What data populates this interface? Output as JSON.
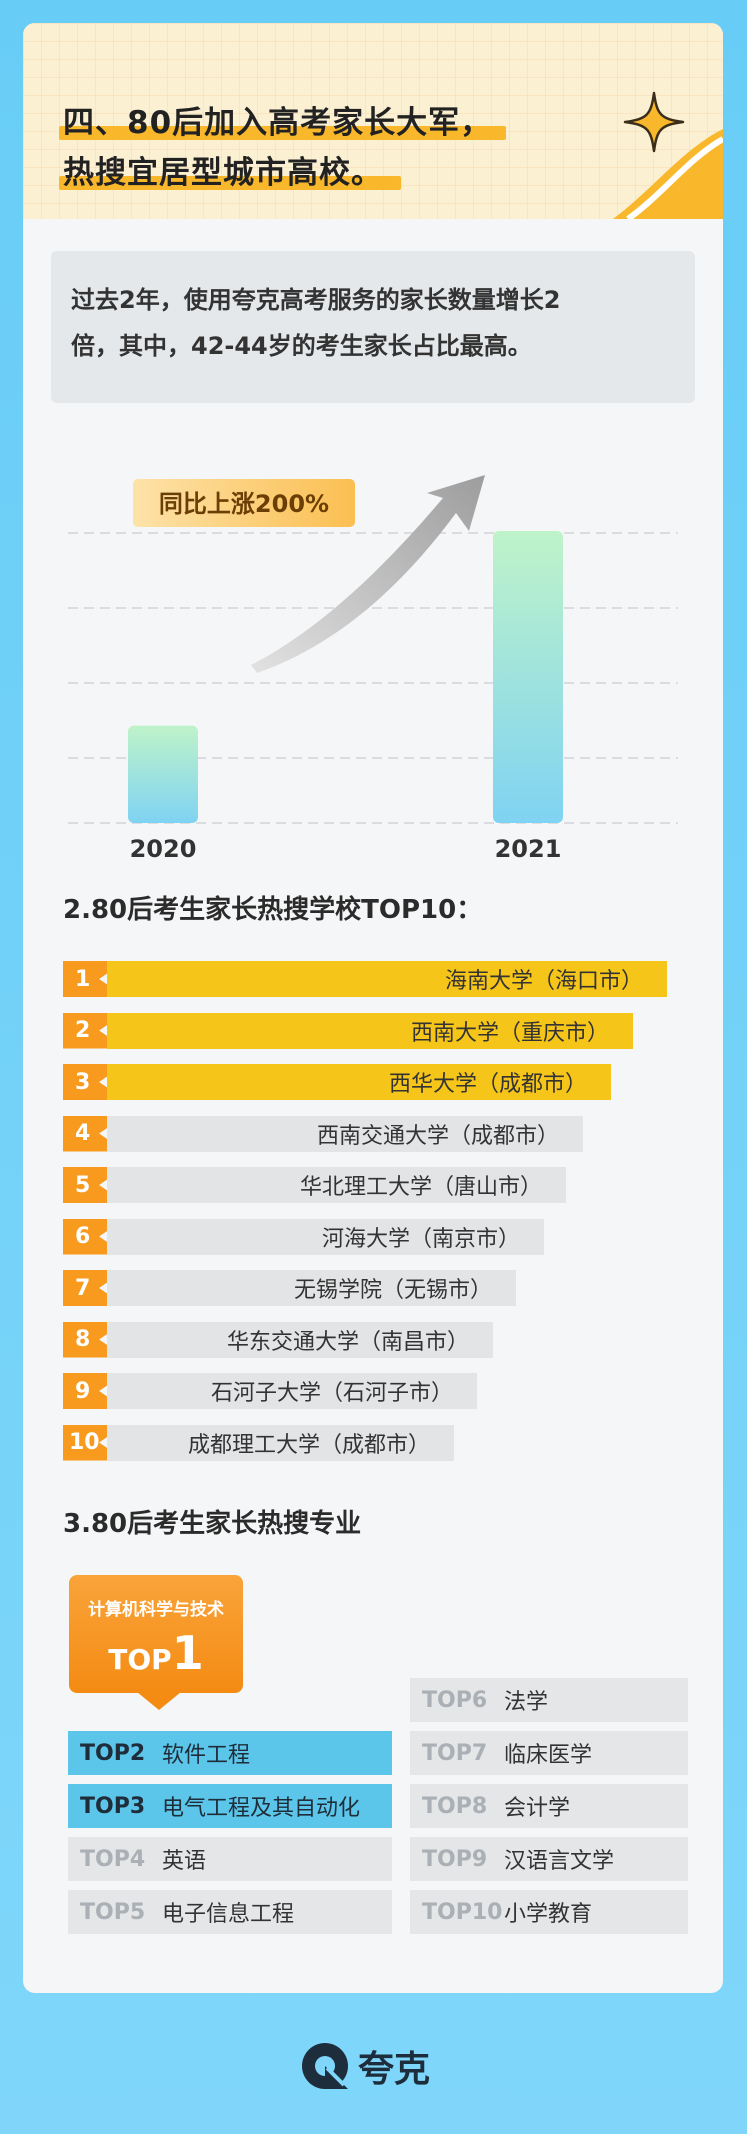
{
  "header": {
    "title_line1": "四、80后加入高考家长大军，",
    "title_line2": "热搜宜居型城市高校。"
  },
  "description": {
    "line1": "过去2年，使用夸克高考服务的家长数量增长2",
    "line2": "倍，其中，42-44岁的考生家长占比最高。"
  },
  "chart_data": {
    "type": "bar",
    "categories": [
      "2020",
      "2021"
    ],
    "values": [
      1,
      3
    ],
    "annotation": "同比上涨200%",
    "title": "",
    "xlabel": "",
    "ylabel": "",
    "grid": true,
    "colors": {
      "bar_top": "#bff3c9",
      "bar_bottom": "#7fd3f2",
      "arrow": "#bdbdbd",
      "annotation_bg": "#fcc96d"
    }
  },
  "ranking": {
    "title": "2.80后考生家长热搜学校TOP10：",
    "items": [
      {
        "rank": "1",
        "name": "海南大学（海口市）",
        "score": 1.0,
        "highlight": true
      },
      {
        "rank": "2",
        "name": "西南大学（重庆市）",
        "score": 0.94,
        "highlight": true
      },
      {
        "rank": "3",
        "name": "西华大学（成都市）",
        "score": 0.9,
        "highlight": true
      },
      {
        "rank": "4",
        "name": "西南交通大学（成都市）",
        "score": 0.85,
        "highlight": false
      },
      {
        "rank": "5",
        "name": "华北理工大学（唐山市）",
        "score": 0.82,
        "highlight": false
      },
      {
        "rank": "6",
        "name": "河海大学（南京市）",
        "score": 0.78,
        "highlight": false
      },
      {
        "rank": "7",
        "name": "无锡学院（无锡市）",
        "score": 0.73,
        "highlight": false
      },
      {
        "rank": "8",
        "name": "华东交通大学（南昌市）",
        "score": 0.69,
        "highlight": false
      },
      {
        "rank": "9",
        "name": "石河子大学（石河子市）",
        "score": 0.66,
        "highlight": false
      },
      {
        "rank": "10",
        "name": "成都理工大学（成都市）",
        "score": 0.62,
        "highlight": false
      }
    ]
  },
  "majors": {
    "title": "3.80后考生家长热搜专业",
    "top1": {
      "label": "计算机科学与技术",
      "tag_prefix": "TOP",
      "tag_num": "1"
    },
    "left": [
      {
        "tag": "TOP2",
        "name": "软件工程",
        "style": "blue"
      },
      {
        "tag": "TOP3",
        "name": "电气工程及其自动化",
        "style": "blue"
      },
      {
        "tag": "TOP4",
        "name": "英语",
        "style": "gray"
      },
      {
        "tag": "TOP5",
        "name": "电子信息工程",
        "style": "gray"
      }
    ],
    "right": [
      {
        "tag": "TOP6",
        "name": "法学"
      },
      {
        "tag": "TOP7",
        "name": "临床医学"
      },
      {
        "tag": "TOP8",
        "name": "会计学"
      },
      {
        "tag": "TOP9",
        "name": "汉语言文学"
      },
      {
        "tag": "TOP10",
        "name": "小学教育"
      }
    ]
  },
  "footer": {
    "brand": "夸克",
    "logo_icon": "quark-logo-icon"
  }
}
